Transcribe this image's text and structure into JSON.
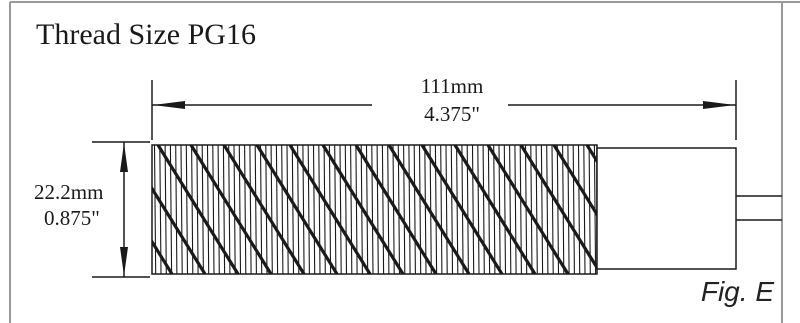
{
  "title": "Thread Size PG16",
  "dimensions": {
    "length_mm": "111mm",
    "length_in": "4.375\"",
    "diameter_mm": "22.2mm",
    "diameter_in": "0.875\""
  },
  "figure_label": "Fig. E",
  "colors": {
    "line": "#1a1a1a",
    "frame": "#9a9a9a",
    "background": "#ffffff"
  }
}
